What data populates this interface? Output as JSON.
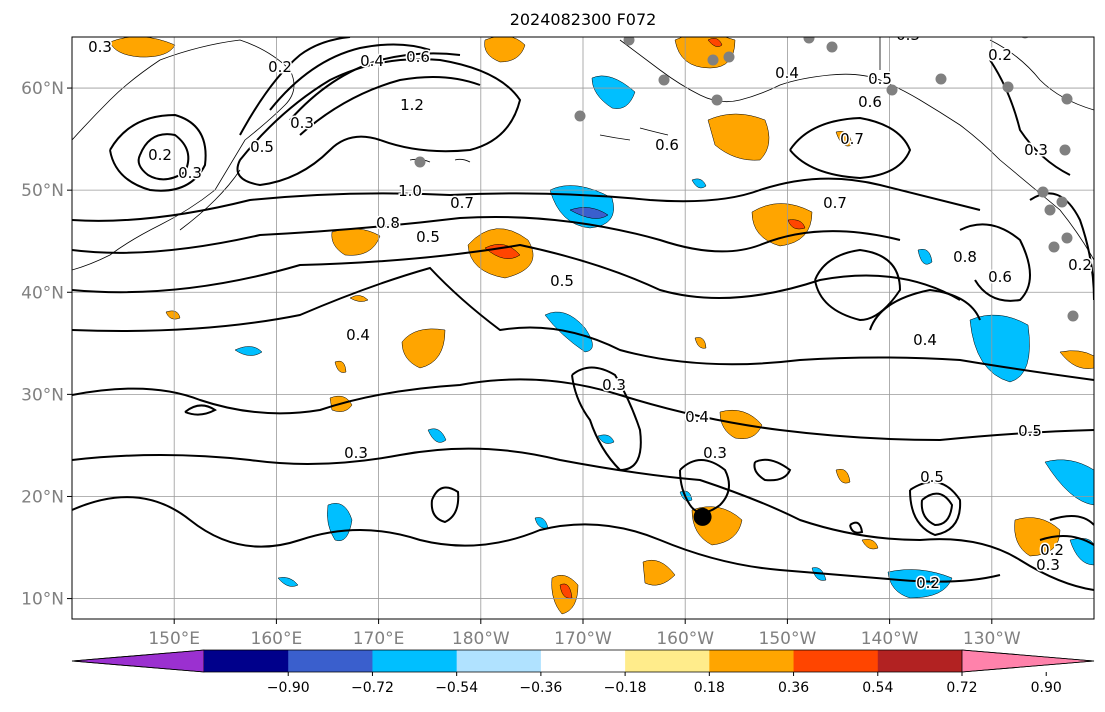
{
  "title": "2024082300 F072",
  "lat_ticks": [
    "60°N",
    "50°N",
    "40°N",
    "30°N",
    "20°N",
    "10°N"
  ],
  "lon_ticks": [
    "150°E",
    "160°E",
    "170°E",
    "180°W",
    "170°W",
    "160°W",
    "150°W",
    "140°W",
    "130°W"
  ],
  "colorbar": {
    "ticks": [
      "−0.90",
      "−0.72",
      "−0.54",
      "−0.36",
      "−0.18",
      "0.18",
      "0.36",
      "0.54",
      "0.72",
      "0.90"
    ],
    "colors": [
      "#9b30d0",
      "#00008b",
      "#3a5fcd",
      "#00bfff",
      "#b0e2ff",
      "#ffffff",
      "#ffec8b",
      "#ffa500",
      "#ff4500",
      "#b22222",
      "#ff82ab"
    ]
  },
  "contour_labels": [
    "0.3",
    "0.2",
    "0.4",
    "0.6",
    "1.2",
    "0.3",
    "0.5",
    "0.2",
    "0.3",
    "1.0",
    "0.8",
    "0.7",
    "0.5",
    "0.5",
    "0.4",
    "0.3",
    "0.3",
    "0.4",
    "0.3",
    "0.5",
    "0.6",
    "0.4",
    "0.5",
    "0.6",
    "0.7",
    "0.7",
    "0.8",
    "0.6",
    "0.4",
    "0.5",
    "0.2",
    "0.3",
    "0.2",
    "0.3",
    "0.2",
    "0.3",
    "0.2"
  ],
  "chart_data": {
    "type": "map",
    "region": "North Pacific",
    "lat_range": [
      "8°N",
      "65°N"
    ],
    "lon_range": [
      "140°E",
      "120°W"
    ],
    "fields": {
      "contours": "black lines, levels 0.2–1.2",
      "shading": "filled anomalies, colorbar −0.90 to 0.90"
    },
    "markers": [
      {
        "type": "storm-center",
        "lat": 18,
        "lon": -158.3
      }
    ]
  }
}
